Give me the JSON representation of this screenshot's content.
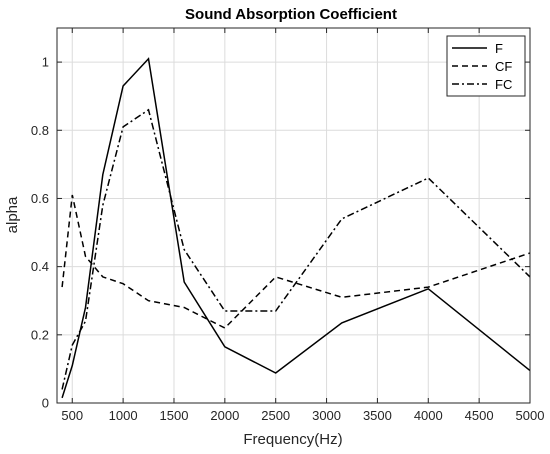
{
  "chart_data": {
    "type": "line",
    "title": "Sound Absorption Coefficient",
    "xlabel": "Frequency(Hz)",
    "ylabel": "alpha",
    "xlim": [
      350,
      5000
    ],
    "ylim": [
      0,
      1.1
    ],
    "xticks": [
      500,
      1000,
      1500,
      2000,
      2500,
      3000,
      3500,
      4000,
      4500,
      5000
    ],
    "yticks": [
      0,
      0.2,
      0.4,
      0.6,
      0.8,
      1
    ],
    "grid": true,
    "legend_position": "top-right",
    "x": [
      400,
      500,
      630,
      800,
      1000,
      1250,
      1600,
      2000,
      2500,
      3150,
      4000,
      5000
    ],
    "series": [
      {
        "name": "F",
        "style": "solid",
        "values": [
          0.015,
          0.11,
          0.28,
          0.67,
          0.93,
          1.01,
          0.355,
          0.165,
          0.088,
          0.235,
          0.335,
          0.095
        ]
      },
      {
        "name": "CF",
        "style": "dashed",
        "values": [
          0.34,
          0.61,
          0.43,
          0.37,
          0.35,
          0.3,
          0.28,
          0.22,
          0.37,
          0.31,
          0.34,
          0.44
        ]
      },
      {
        "name": "FC",
        "style": "dashdot",
        "values": [
          0.04,
          0.17,
          0.24,
          0.58,
          0.81,
          0.86,
          0.45,
          0.27,
          0.27,
          0.54,
          0.66,
          0.37
        ]
      }
    ]
  }
}
